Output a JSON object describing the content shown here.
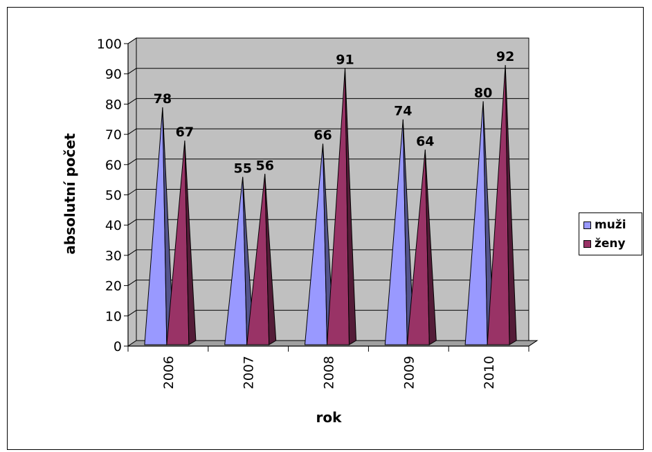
{
  "chart_data": {
    "type": "bar",
    "style": "3d-pyramid",
    "categories": [
      "2006",
      "2007",
      "2008",
      "2009",
      "2010"
    ],
    "series": [
      {
        "name": "muži",
        "values": [
          78,
          55,
          66,
          74,
          80
        ],
        "color": "#9999FF"
      },
      {
        "name": "ženy",
        "values": [
          67,
          56,
          91,
          64,
          92
        ],
        "color": "#993366"
      }
    ],
    "xlabel": "rok",
    "ylabel": "absolutní počet",
    "ylim": [
      0,
      100
    ],
    "yticks": [
      "0",
      "10",
      "20",
      "30",
      "40",
      "50",
      "60",
      "70",
      "80",
      "90",
      "100"
    ],
    "grid": true,
    "wall_color": "#C0C0C0",
    "legend_position": "right",
    "data_labels": true
  }
}
